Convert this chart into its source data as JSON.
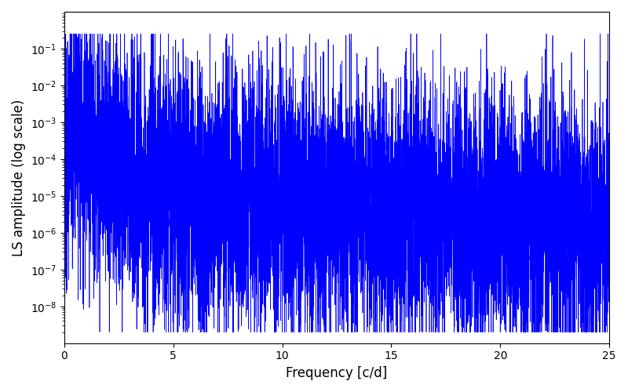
{
  "xlabel": "Frequency [c/d]",
  "ylabel": "LS amplitude (log scale)",
  "xlim": [
    0,
    25
  ],
  "color": "#0000ff",
  "background_color": "#ffffff",
  "freq_max": 25.0,
  "seed": 12345
}
